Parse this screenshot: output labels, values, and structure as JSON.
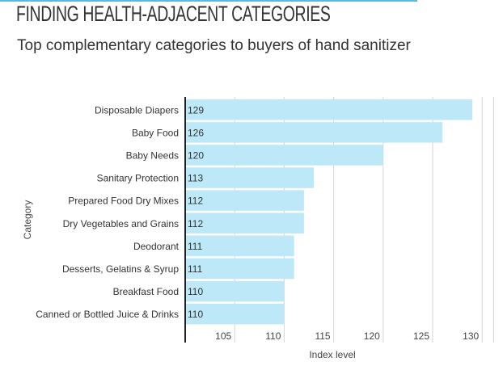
{
  "header": {
    "title": "FINDING HEALTH-ADJACENT CATEGORIES",
    "subtitle": "Top complementary categories to buyers of hand sanitizer"
  },
  "chart_data": {
    "type": "bar",
    "orientation": "horizontal",
    "categories": [
      "Disposable Diapers",
      "Baby Food",
      "Baby Needs",
      "Sanitary Protection",
      "Prepared Food Dry Mixes",
      "Dry Vegetables and Grains",
      "Deodorant",
      "Desserts, Gelatins & Syrup",
      "Breakfast Food",
      "Canned or Bottled Juice & Drinks"
    ],
    "values": [
      129,
      126,
      120,
      113,
      112,
      112,
      111,
      111,
      110,
      110
    ],
    "data_labels": [
      "129",
      "126",
      "120",
      "113",
      "112",
      "112",
      "111",
      "111",
      "110",
      "110"
    ],
    "xlabel": "Index level",
    "ylabel": "Category",
    "xlim": [
      100,
      131
    ],
    "xticks": [
      105,
      110,
      115,
      120,
      125,
      130
    ],
    "xtick_labels": [
      "105",
      "110",
      "115",
      "120",
      "125",
      "130"
    ],
    "grid": true,
    "bar_color": "#bde8f7"
  }
}
